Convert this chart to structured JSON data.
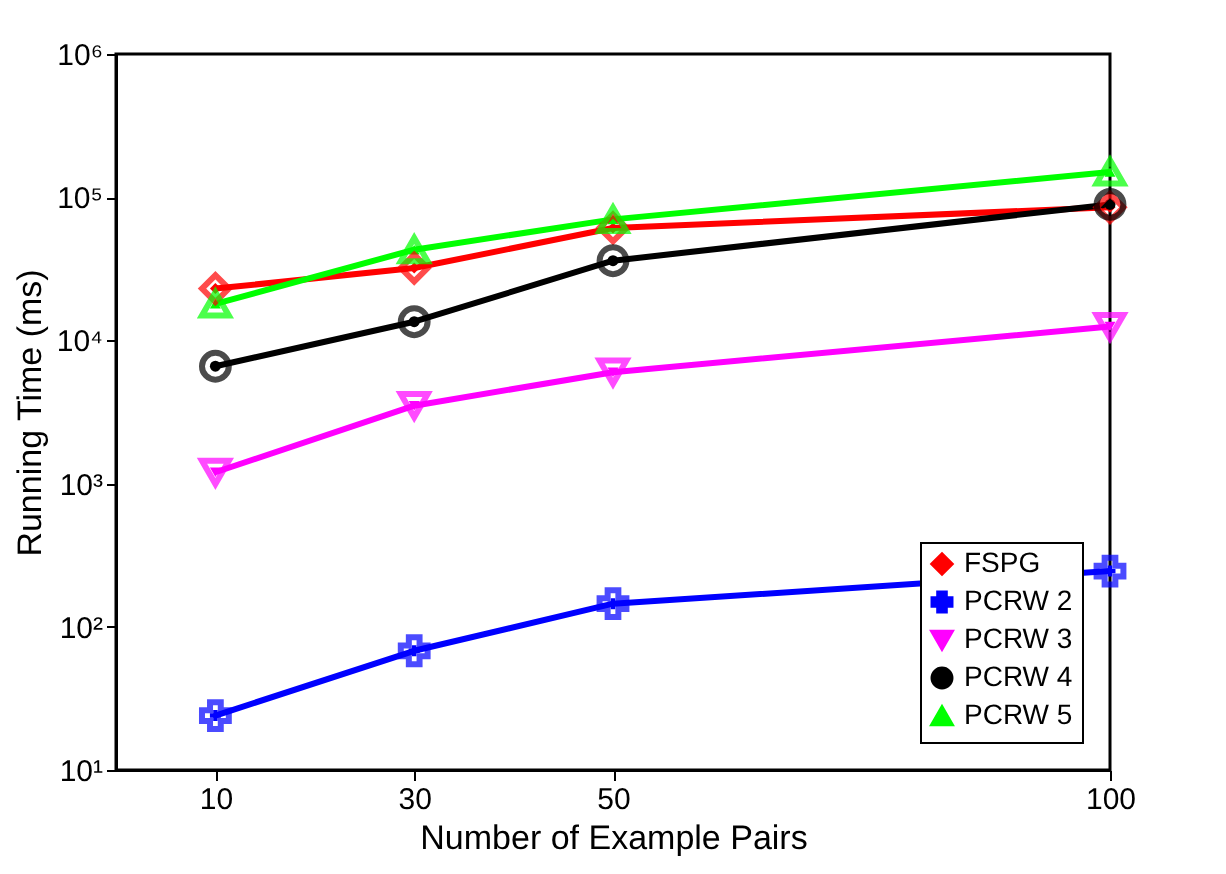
{
  "chart_data": {
    "type": "line",
    "xlabel": "Number of Example Pairs",
    "ylabel": "Running Time (ms)",
    "x": [
      10,
      30,
      50,
      100
    ],
    "series": [
      {
        "name": "FSPG",
        "color": "#ff0000",
        "marker": "diamond",
        "values": [
          23000,
          32000,
          61000,
          85000
        ]
      },
      {
        "name": "PCRW 2",
        "color": "#0000ff",
        "marker": "cross",
        "values": [
          24,
          68,
          145,
          245
        ]
      },
      {
        "name": "PCRW 3",
        "color": "#ff00ff",
        "marker": "triangle-down",
        "values": [
          1200,
          3500,
          6000,
          12500
        ]
      },
      {
        "name": "PCRW 4",
        "color": "#000000",
        "marker": "circle",
        "values": [
          6600,
          13500,
          36000,
          89000
        ]
      },
      {
        "name": "PCRW 5",
        "color": "#00ff00",
        "marker": "triangle",
        "values": [
          18000,
          43000,
          70000,
          150000
        ]
      }
    ],
    "xlim": [
      0,
      100
    ],
    "xticks": [
      10,
      30,
      50,
      100
    ],
    "ylim": [
      10,
      1000000
    ],
    "yticks": [
      {
        "value": 10,
        "label": "10¹"
      },
      {
        "value": 100,
        "label": "10²"
      },
      {
        "value": 1000,
        "label": "10³"
      },
      {
        "value": 10000,
        "label": "10⁴"
      },
      {
        "value": 100000,
        "label": "10⁵"
      },
      {
        "value": 1000000,
        "label": "10⁶"
      }
    ],
    "log": "y",
    "grid": false,
    "legend": "bottom right",
    "line_style": "solid"
  }
}
